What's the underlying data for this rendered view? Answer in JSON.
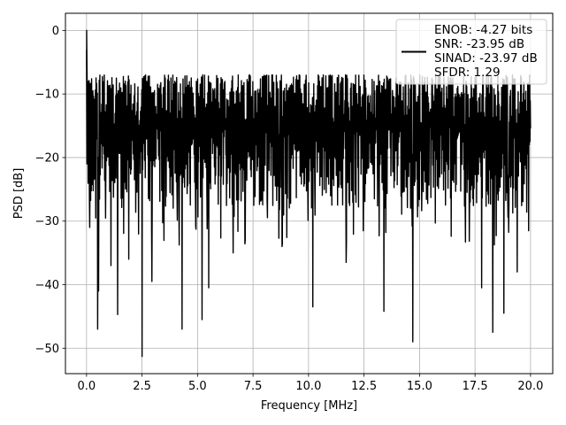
{
  "chart_data": {
    "type": "line",
    "xlabel": "Frequency [MHz]",
    "ylabel": "PSD [dB]",
    "xlim": [
      -0.95,
      21.0
    ],
    "ylim": [
      -54.0,
      2.7
    ],
    "x_ticks": [
      0.0,
      2.5,
      5.0,
      7.5,
      10.0,
      12.5,
      15.0,
      17.5,
      20.0
    ],
    "x_tick_labels": [
      "0.0",
      "2.5",
      "5.0",
      "7.5",
      "10.0",
      "12.5",
      "15.0",
      "17.5",
      "20.0"
    ],
    "y_ticks": [
      0,
      -10,
      -20,
      -30,
      -40,
      -50
    ],
    "y_tick_labels": [
      "0",
      "−10",
      "−20",
      "−30",
      "−40",
      "−50"
    ],
    "grid": true,
    "legend_position": "top-right",
    "line_color": "#000000",
    "series": [
      {
        "name": "ENOB: -4.27 bits\nSNR: -23.95 dB\nSINAD: -23.97 dB\nSFDR: 1.29",
        "x_start": 0.0,
        "x_end": 20.0,
        "peak": {
          "x": 0.0,
          "y": 0.0
        },
        "typical_range": [
          -26,
          -8
        ],
        "dips": [
          {
            "x": 0.15,
            "y": -31.0
          },
          {
            "x": 0.5,
            "y": -47.0
          },
          {
            "x": 0.55,
            "y": -41.0
          },
          {
            "x": 1.1,
            "y": -37.0
          },
          {
            "x": 1.4,
            "y": -44.7
          },
          {
            "x": 1.9,
            "y": -36.0
          },
          {
            "x": 2.5,
            "y": -51.3
          },
          {
            "x": 2.95,
            "y": -39.5
          },
          {
            "x": 4.3,
            "y": -47.0
          },
          {
            "x": 5.2,
            "y": -45.5
          },
          {
            "x": 5.5,
            "y": -40.5
          },
          {
            "x": 6.6,
            "y": -35.0
          },
          {
            "x": 8.8,
            "y": -34.0
          },
          {
            "x": 10.2,
            "y": -43.5
          },
          {
            "x": 11.7,
            "y": -36.5
          },
          {
            "x": 13.4,
            "y": -44.2
          },
          {
            "x": 14.7,
            "y": -49.0
          },
          {
            "x": 17.8,
            "y": -40.5
          },
          {
            "x": 18.3,
            "y": -47.5
          },
          {
            "x": 18.8,
            "y": -44.5
          },
          {
            "x": 19.4,
            "y": -38.0
          }
        ]
      }
    ]
  }
}
